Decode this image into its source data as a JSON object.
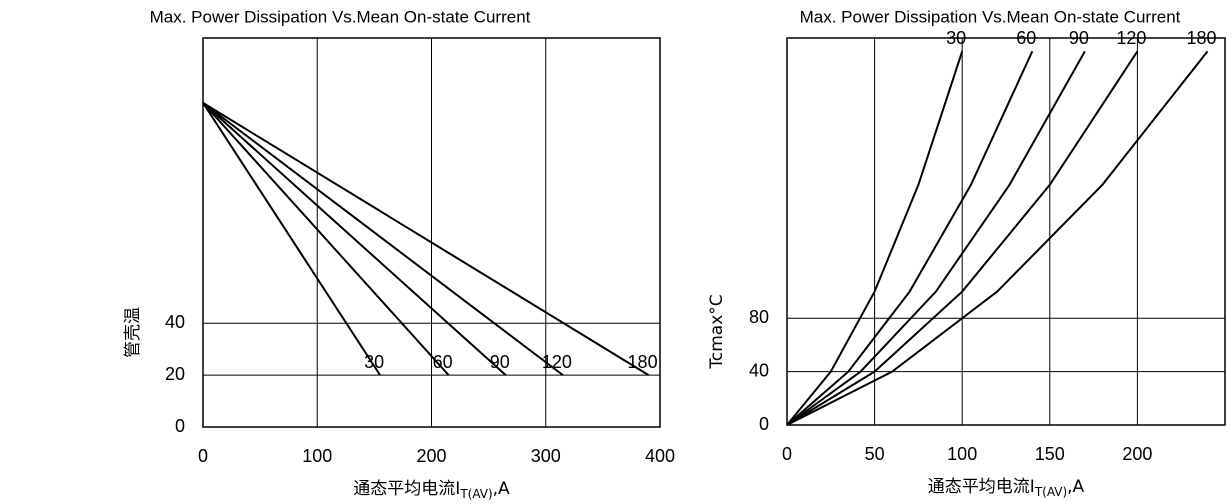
{
  "chart_data": [
    {
      "type": "line",
      "title": "Max. Power Dissipation Vs.Mean On-state Current",
      "y_label": "管壳温",
      "x_label": "通态平均电流I",
      "x_label_sub": "T(AV)",
      "x_label_unit": ",A",
      "xlim": [
        0,
        400
      ],
      "xticks": [
        0,
        100,
        200,
        300,
        400
      ],
      "ylim": [
        0,
        150
      ],
      "yticks": [
        0,
        20,
        40
      ],
      "grid": true,
      "series": [
        {
          "name": "30",
          "color": "#000000",
          "x": [
            0,
            155
          ],
          "values": [
            125,
            20
          ]
        },
        {
          "name": "60",
          "color": "#000000",
          "x": [
            0,
            215
          ],
          "values": [
            125,
            20
          ]
        },
        {
          "name": "90",
          "color": "#000000",
          "x": [
            0,
            265
          ],
          "values": [
            125,
            20
          ]
        },
        {
          "name": "120",
          "color": "#000000",
          "x": [
            0,
            315
          ],
          "values": [
            125,
            20
          ]
        },
        {
          "name": "180",
          "color": "#000000",
          "x": [
            0,
            390
          ],
          "values": [
            125,
            20
          ]
        }
      ]
    },
    {
      "type": "line",
      "title": "Max. Power Dissipation Vs.Mean On-state Current",
      "y_label": "Tcmax°C",
      "x_label": "通态平均电流I",
      "x_label_sub": "T(AV)",
      "x_label_unit": ",A",
      "xlim": [
        0,
        250
      ],
      "xticks": [
        0,
        50,
        100,
        150,
        200
      ],
      "ylim": [
        0,
        290
      ],
      "yticks": [
        0,
        40,
        80
      ],
      "grid": true,
      "series": [
        {
          "name": "30",
          "color": "#000000",
          "x": [
            0,
            25,
            50,
            75,
            100
          ],
          "values": [
            0,
            40,
            100,
            180,
            280
          ]
        },
        {
          "name": "60",
          "color": "#000000",
          "x": [
            0,
            35,
            70,
            105,
            140
          ],
          "values": [
            0,
            40,
            100,
            180,
            280
          ]
        },
        {
          "name": "90",
          "color": "#000000",
          "x": [
            0,
            42,
            85,
            127,
            170
          ],
          "values": [
            0,
            40,
            100,
            180,
            280
          ]
        },
        {
          "name": "120",
          "color": "#000000",
          "x": [
            0,
            50,
            100,
            150,
            200
          ],
          "values": [
            0,
            40,
            100,
            180,
            280
          ]
        },
        {
          "name": "180",
          "color": "#000000",
          "x": [
            0,
            60,
            120,
            180,
            240
          ],
          "values": [
            0,
            40,
            100,
            180,
            280
          ]
        }
      ]
    }
  ]
}
